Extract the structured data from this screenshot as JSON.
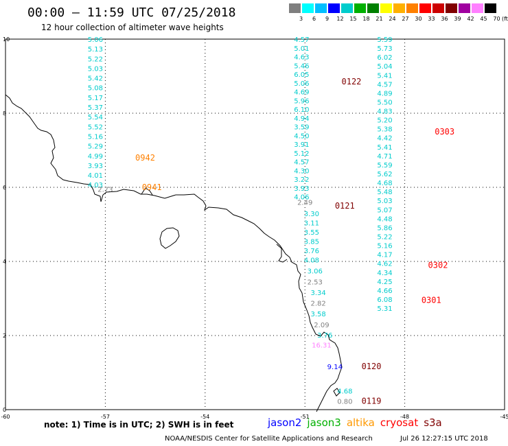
{
  "header": {
    "title": "00:00 – 11:59 UTC 07/25/2018",
    "subtitle": "12 hour collection of altimeter wave heights"
  },
  "colorbar": {
    "unit": "(ft)",
    "colors": [
      "#7f7f7f",
      "#00ffff",
      "#00bfff",
      "#0000ff",
      "#00cccc",
      "#00b000",
      "#008000",
      "#ffff00",
      "#ffb000",
      "#ff8000",
      "#ff0000",
      "#cc0000",
      "#800000",
      "#a000a0",
      "#ff80ff",
      "#000000"
    ],
    "labels": [
      "3",
      "6",
      "9",
      "12",
      "15",
      "18",
      "21",
      "24",
      "27",
      "30",
      "33",
      "36",
      "39",
      "42",
      "45",
      "70"
    ]
  },
  "axes": {
    "y_ticks": [
      "10",
      "8",
      "6",
      "4",
      "2",
      "0"
    ],
    "x_ticks": [
      "-60",
      "-57",
      "-54",
      "-51",
      "-48",
      "-45"
    ]
  },
  "tracks": [
    {
      "x": -57.3,
      "y_top": 10,
      "y_bottom": 6.07,
      "color": "#00cccc",
      "values": [
        "5.06",
        "5.13",
        "5.22",
        "5.03",
        "5.42",
        "5.08",
        "5.17",
        "5.37",
        "5.54",
        "5.52",
        "5.16",
        "5.29",
        "4.99",
        "3.93",
        "4.01",
        "4.03"
      ]
    },
    {
      "x": -57.0,
      "y_top": 5.95,
      "y_bottom": 5.95,
      "color": "#808080",
      "values": [
        "2.73"
      ]
    },
    {
      "x": -51.1,
      "y_top": 10,
      "y_bottom": 5.75,
      "color": "#00cccc",
      "values": [
        "4.57",
        "5.01",
        "4.63",
        "5.46",
        "6.05",
        "5.06",
        "4.69",
        "5.96",
        "6.10",
        "4.94",
        "3.59",
        "4.50",
        "3.91",
        "5.12",
        "4.57",
        "4.30",
        "3.22",
        "3.93",
        "4.06"
      ]
    },
    {
      "x": -51.0,
      "y_top": 5.6,
      "y_bottom": 5.6,
      "color": "#808080",
      "values": [
        "2.49"
      ]
    },
    {
      "x": -50.8,
      "y_top": 5.3,
      "y_bottom": 4.05,
      "color": "#00cccc",
      "values": [
        "3.30",
        "3.11",
        "3.55",
        "3.85",
        "3.76",
        "4.08"
      ]
    },
    {
      "x": -50.7,
      "y_top": 3.75,
      "y_bottom": 3.75,
      "color": "#00cccc",
      "values": [
        "3.06"
      ]
    },
    {
      "x": -50.7,
      "y_top": 3.45,
      "y_bottom": 3.45,
      "color": "#808080",
      "values": [
        "2.53"
      ]
    },
    {
      "x": -50.6,
      "y_top": 3.17,
      "y_bottom": 3.17,
      "color": "#00cccc",
      "values": [
        "3.34"
      ]
    },
    {
      "x": -50.6,
      "y_top": 2.88,
      "y_bottom": 2.88,
      "color": "#808080",
      "values": [
        "2.82"
      ]
    },
    {
      "x": -50.6,
      "y_top": 2.59,
      "y_bottom": 2.59,
      "color": "#00cccc",
      "values": [
        "3.58"
      ]
    },
    {
      "x": -50.5,
      "y_top": 2.3,
      "y_bottom": 2.3,
      "color": "#808080",
      "values": [
        "2.09"
      ]
    },
    {
      "x": -50.4,
      "y_top": 2.02,
      "y_bottom": 2.02,
      "color": "#00cccc",
      "values": [
        "3.76"
      ]
    },
    {
      "x": -50.5,
      "y_top": 1.75,
      "y_bottom": 1.75,
      "color": "#ff80ff",
      "values": [
        "16.31"
      ]
    },
    {
      "x": -50.1,
      "y_top": 1.17,
      "y_bottom": 1.17,
      "color": "#0000ff",
      "values": [
        "9.14"
      ]
    },
    {
      "x": -49.8,
      "y_top": 0.51,
      "y_bottom": 0.51,
      "color": "#00cccc",
      "values": [
        "4.68"
      ]
    },
    {
      "x": -49.8,
      "y_top": 0.23,
      "y_bottom": 0.23,
      "color": "#808080",
      "values": [
        "0.80"
      ]
    },
    {
      "x": -48.6,
      "y_top": 10,
      "y_bottom": 2.74,
      "color": "#00cccc",
      "values": [
        "5.59",
        "5.73",
        "6.02",
        "5.04",
        "5.41",
        "4.57",
        "4.89",
        "5.50",
        "4.83",
        "5.20",
        "5.38",
        "4.42",
        "5.41",
        "4.71",
        "5.59",
        "5.62",
        "4.68",
        "5.48",
        "5.03",
        "5.07",
        "4.48",
        "5.86",
        "5.22",
        "5.16",
        "4.17",
        "4.62",
        "4.34",
        "4.25",
        "4.66",
        "6.08",
        "5.31"
      ]
    }
  ],
  "passes": [
    {
      "label": "0122",
      "x": -49.9,
      "y": 8.85,
      "color": "#800000"
    },
    {
      "label": "0303",
      "x": -47.1,
      "y": 7.5,
      "color": "#ff0000"
    },
    {
      "label": "0942",
      "x": -56.1,
      "y": 6.8,
      "color": "#ff8000"
    },
    {
      "label": "0941",
      "x": -55.9,
      "y": 6.0,
      "color": "#ff8000"
    },
    {
      "label": "0121",
      "x": -50.1,
      "y": 5.5,
      "color": "#800000"
    },
    {
      "label": "0302",
      "x": -47.3,
      "y": 3.9,
      "color": "#ff0000"
    },
    {
      "label": "0301",
      "x": -47.5,
      "y": 2.95,
      "color": "#ff0000"
    },
    {
      "label": "0120",
      "x": -49.3,
      "y": 1.17,
      "color": "#800000"
    },
    {
      "label": "0119",
      "x": -49.3,
      "y": 0.23,
      "color": "#800000"
    }
  ],
  "footer": {
    "note": "note: 1) Time is in UTC; 2) SWH is in feet",
    "legend": [
      {
        "name": "jason2",
        "color": "#0000ff"
      },
      {
        "name": "jason3",
        "color": "#00b000"
      },
      {
        "name": "altika",
        "color": "#ff9900"
      },
      {
        "name": "cryosat",
        "color": "#ff0000"
      },
      {
        "name": "s3a",
        "color": "#800000"
      }
    ],
    "credit": "NOAA/NESDIS Center for Satellite Applications and Research",
    "stamp": "Jul 26 12:27:15 UTC 2018"
  }
}
